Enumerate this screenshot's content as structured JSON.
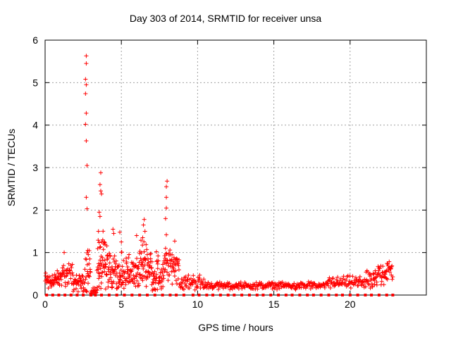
{
  "chart_data": {
    "type": "scatter",
    "title": "Day 303 of 2014, SRMTID for receiver unsa",
    "xlabel": "GPS time / hours",
    "ylabel": "SRMTID / TECUs",
    "xlim": [
      0,
      25
    ],
    "ylim": [
      0,
      6
    ],
    "xticks": [
      0,
      5,
      10,
      15,
      20
    ],
    "yticks": [
      0,
      1,
      2,
      3,
      4,
      5,
      6
    ],
    "grid": true,
    "marker_color": "#ff0000",
    "spike_points": [
      {
        "x": 2.7,
        "y": 5.63
      },
      {
        "x": 2.7,
        "y": 5.45
      },
      {
        "x": 2.65,
        "y": 5.08
      },
      {
        "x": 2.7,
        "y": 4.95
      },
      {
        "x": 2.65,
        "y": 4.74
      },
      {
        "x": 2.7,
        "y": 4.28
      },
      {
        "x": 2.65,
        "y": 4.02
      },
      {
        "x": 2.7,
        "y": 3.63
      },
      {
        "x": 2.75,
        "y": 3.05
      },
      {
        "x": 2.7,
        "y": 2.3
      },
      {
        "x": 2.75,
        "y": 2.03
      },
      {
        "x": 2.8,
        "y": 1.05
      },
      {
        "x": 3.65,
        "y": 2.88
      },
      {
        "x": 3.6,
        "y": 2.6
      },
      {
        "x": 3.65,
        "y": 2.45
      },
      {
        "x": 3.7,
        "y": 2.38
      },
      {
        "x": 3.55,
        "y": 1.95
      },
      {
        "x": 3.6,
        "y": 1.85
      },
      {
        "x": 3.5,
        "y": 1.5
      },
      {
        "x": 8.0,
        "y": 2.68
      },
      {
        "x": 7.95,
        "y": 2.55
      },
      {
        "x": 7.95,
        "y": 2.3
      },
      {
        "x": 7.95,
        "y": 2.05
      },
      {
        "x": 7.9,
        "y": 1.8
      },
      {
        "x": 7.95,
        "y": 1.42
      },
      {
        "x": 7.9,
        "y": 1.1
      },
      {
        "x": 6.5,
        "y": 1.78
      },
      {
        "x": 6.45,
        "y": 1.65
      },
      {
        "x": 6.55,
        "y": 1.5
      },
      {
        "x": 6.4,
        "y": 1.35
      },
      {
        "x": 4.45,
        "y": 1.55
      },
      {
        "x": 4.5,
        "y": 1.45
      },
      {
        "x": 4.9,
        "y": 1.48
      },
      {
        "x": 5.0,
        "y": 1.25
      },
      {
        "x": 6.0,
        "y": 1.4
      },
      {
        "x": 1.25,
        "y": 1.0
      },
      {
        "x": 8.5,
        "y": 1.27
      },
      {
        "x": 7.3,
        "y": 1.02
      }
    ],
    "segments": [
      {
        "x0": 0.0,
        "x1": 1.0,
        "base": 0.35,
        "spread": 0.2,
        "n": 50,
        "floor": 0.1
      },
      {
        "x0": 1.0,
        "x1": 1.8,
        "base": 0.5,
        "spread": 0.25,
        "n": 35,
        "floor": 0.12
      },
      {
        "x0": 1.8,
        "x1": 2.6,
        "base": 0.3,
        "spread": 0.2,
        "n": 40,
        "floor": 0.02
      },
      {
        "x0": 2.6,
        "x1": 3.0,
        "base": 0.55,
        "spread": 0.45,
        "n": 25,
        "floor": 0.05
      },
      {
        "x0": 3.0,
        "x1": 3.4,
        "base": 0.08,
        "spread": 0.1,
        "n": 15,
        "floor": 0.0
      },
      {
        "x0": 3.4,
        "x1": 4.1,
        "base": 0.7,
        "spread": 0.6,
        "n": 55,
        "floor": 0.1
      },
      {
        "x0": 4.1,
        "x1": 5.2,
        "base": 0.55,
        "spread": 0.45,
        "n": 70,
        "floor": 0.15
      },
      {
        "x0": 5.2,
        "x1": 6.2,
        "base": 0.5,
        "spread": 0.35,
        "n": 60,
        "floor": 0.2
      },
      {
        "x0": 6.2,
        "x1": 7.0,
        "base": 0.7,
        "spread": 0.5,
        "n": 55,
        "floor": 0.2
      },
      {
        "x0": 7.0,
        "x1": 7.8,
        "base": 0.45,
        "spread": 0.35,
        "n": 50,
        "floor": 0.1
      },
      {
        "x0": 7.8,
        "x1": 8.8,
        "base": 0.7,
        "spread": 0.35,
        "n": 55,
        "floor": 0.25
      },
      {
        "x0": 8.8,
        "x1": 10.5,
        "base": 0.3,
        "spread": 0.15,
        "n": 60,
        "floor": 0.1
      },
      {
        "x0": 10.5,
        "x1": 18.5,
        "base": 0.22,
        "spread": 0.07,
        "n": 240,
        "floor": 0.1
      },
      {
        "x0": 18.5,
        "x1": 21.0,
        "base": 0.3,
        "spread": 0.12,
        "n": 80,
        "floor": 0.12
      },
      {
        "x0": 21.0,
        "x1": 21.8,
        "base": 0.35,
        "spread": 0.18,
        "n": 35,
        "floor": 0.1
      },
      {
        "x0": 21.8,
        "x1": 22.8,
        "base": 0.55,
        "spread": 0.25,
        "n": 45,
        "floor": 0.2
      }
    ],
    "zero_points_x": [
      0.1,
      0.5,
      0.9,
      1.3,
      1.7,
      2.1,
      2.5,
      3.0,
      3.3,
      3.7,
      4.2,
      4.7,
      5.2,
      5.7,
      6.2,
      6.7,
      7.2,
      7.7,
      8.2,
      8.6,
      9.1,
      9.7,
      10.1,
      10.6,
      11.0,
      11.5,
      12.0,
      12.4,
      12.9,
      13.4,
      13.9,
      14.3,
      14.8,
      15.3,
      15.8,
      16.2,
      16.7,
      17.2,
      17.6,
      18.1,
      18.6,
      19.1,
      19.5,
      20.0,
      20.5,
      21.0,
      21.4,
      21.9,
      22.4,
      22.8
    ]
  }
}
